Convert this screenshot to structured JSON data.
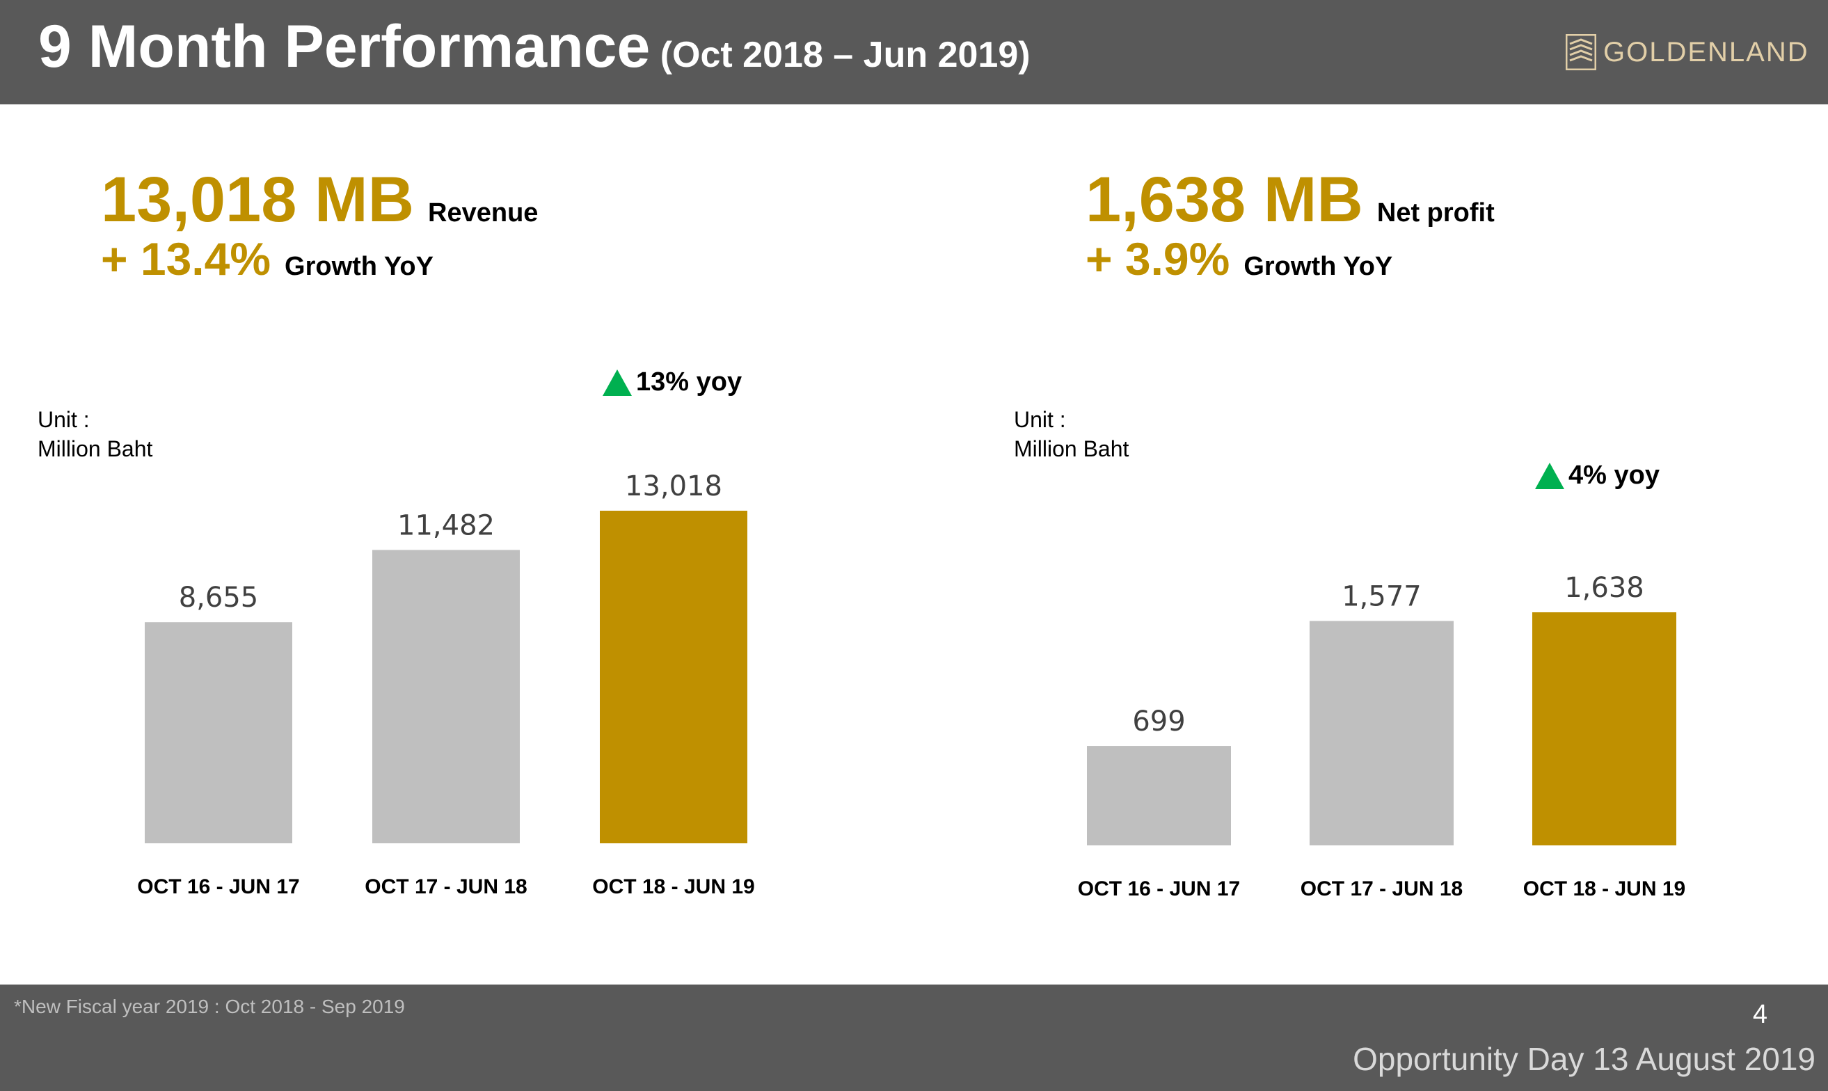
{
  "header": {
    "title": "9 Month Performance",
    "subtitle": "(Oct 2018 – Jun 2019)",
    "logo_text": "GOLDENLAND"
  },
  "kpis": {
    "revenue": {
      "value": "13,018 MB",
      "label": "Revenue",
      "growth": "+ 13.4%",
      "growth_label": "Growth YoY"
    },
    "net_profit": {
      "value": "1,638 MB",
      "label": "Net profit",
      "growth": "+ 3.9%",
      "growth_label": "Growth YoY"
    }
  },
  "unit": {
    "line1": "Unit :",
    "line2": "Million Baht"
  },
  "colors": {
    "accent_gold": "#bf9000",
    "bar_grey": "#bfbfbf",
    "up_green": "#00b050",
    "header_bg": "#595959"
  },
  "chart_data": [
    {
      "type": "bar",
      "categories": [
        "OCT 16 - JUN 17",
        "OCT 17 - JUN 18",
        "OCT 18 - JUN 19"
      ],
      "values": [
        8655,
        11482,
        13018
      ],
      "value_labels": [
        "8,655",
        "11,482",
        "13,018"
      ],
      "highlight_index": 2,
      "annotation": "13% yoy",
      "ylim": [
        0,
        13018
      ]
    },
    {
      "type": "bar",
      "categories": [
        "OCT 16 - JUN 17",
        "OCT 17 - JUN 18",
        "OCT 18 - JUN 19"
      ],
      "values": [
        699,
        1577,
        1638
      ],
      "value_labels": [
        "699",
        "1,577",
        "1,638"
      ],
      "highlight_index": 2,
      "annotation": "4% yoy",
      "ylim": [
        0,
        1638
      ]
    }
  ],
  "footer": {
    "note": "*New Fiscal year 2019 : Oct 2018 - Sep 2019",
    "page_number": "4",
    "event": "Opportunity Day 13 August 2019"
  }
}
